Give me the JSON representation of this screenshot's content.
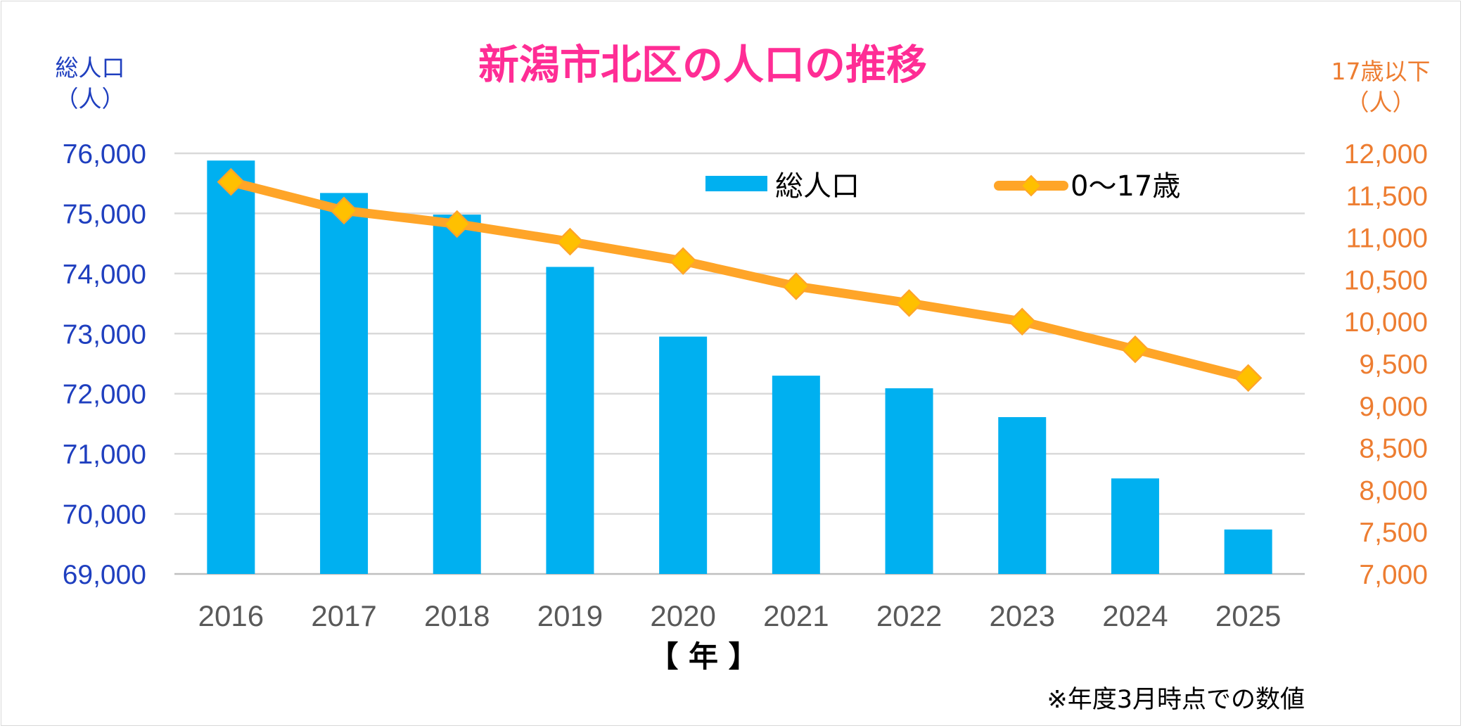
{
  "chart_data": {
    "type": "bar",
    "title": "新潟市北区の人口の推移",
    "categories": [
      "2016",
      "2017",
      "2018",
      "2019",
      "2020",
      "2021",
      "2022",
      "2023",
      "2024",
      "2025"
    ],
    "series": [
      {
        "name": "総人口",
        "type": "bar",
        "axis": "left",
        "color": "#00b0f0",
        "values": [
          75880,
          75340,
          74980,
          74110,
          72950,
          72300,
          72090,
          71610,
          70590,
          69740
        ]
      },
      {
        "name": "0〜17歳",
        "type": "line",
        "axis": "right",
        "color": "#ffa528",
        "marker_color": "#ffc000",
        "values": [
          11660,
          11320,
          11160,
          10950,
          10720,
          10420,
          10220,
          10000,
          9670,
          9330
        ]
      }
    ],
    "left_axis": {
      "label_line1": "総人口",
      "label_line2": "（人）",
      "ylim": [
        69000,
        76000
      ],
      "ticks": [
        "76,000",
        "75,000",
        "74,000",
        "73,000",
        "72,000",
        "71,000",
        "70,000",
        "69,000"
      ],
      "tick_values": [
        76000,
        75000,
        74000,
        73000,
        72000,
        71000,
        70000,
        69000
      ]
    },
    "right_axis": {
      "label_line1": "17歳以下",
      "label_line2": "（人）",
      "ylim": [
        7000,
        12000
      ],
      "ticks": [
        "12,000",
        "11,500",
        "11,000",
        "10,500",
        "10,000",
        "9,500",
        "9,000",
        "8,500",
        "8,000",
        "7,500",
        "7,000"
      ],
      "tick_values": [
        12000,
        11500,
        11000,
        10500,
        10000,
        9500,
        9000,
        8500,
        8000,
        7500,
        7000
      ]
    },
    "xlabel": "【 年 】",
    "note": "※年度3月時点での数値",
    "grid": true,
    "legend_position": "top-right"
  }
}
